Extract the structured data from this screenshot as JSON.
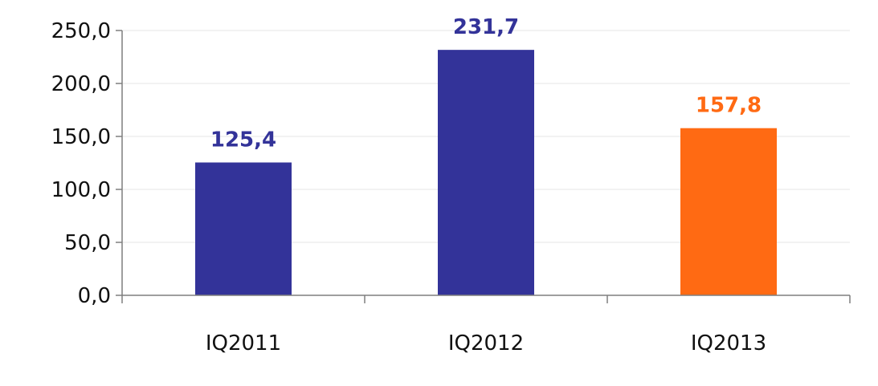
{
  "chart_data": {
    "type": "bar",
    "categories": [
      "IQ2011",
      "IQ2012",
      "IQ2013"
    ],
    "values": [
      125.4,
      231.7,
      157.8
    ],
    "data_labels": [
      "125,4",
      "231,7",
      "157,8"
    ],
    "bar_colors": [
      "#333399",
      "#333399",
      "#FF6A13"
    ],
    "label_colors": [
      "#333399",
      "#333399",
      "#FF6A13"
    ],
    "ylim": [
      0,
      250
    ],
    "yticks": [
      0,
      50,
      100,
      150,
      200,
      250
    ],
    "ytick_labels": [
      "0,0",
      "50,0",
      "100,0",
      "150,0",
      "200,0",
      "250,0"
    ],
    "grid": true,
    "title": "",
    "xlabel": "",
    "ylabel": ""
  },
  "colors": {
    "axis": "#7f7f7f",
    "grid": "#e6e6e6"
  }
}
